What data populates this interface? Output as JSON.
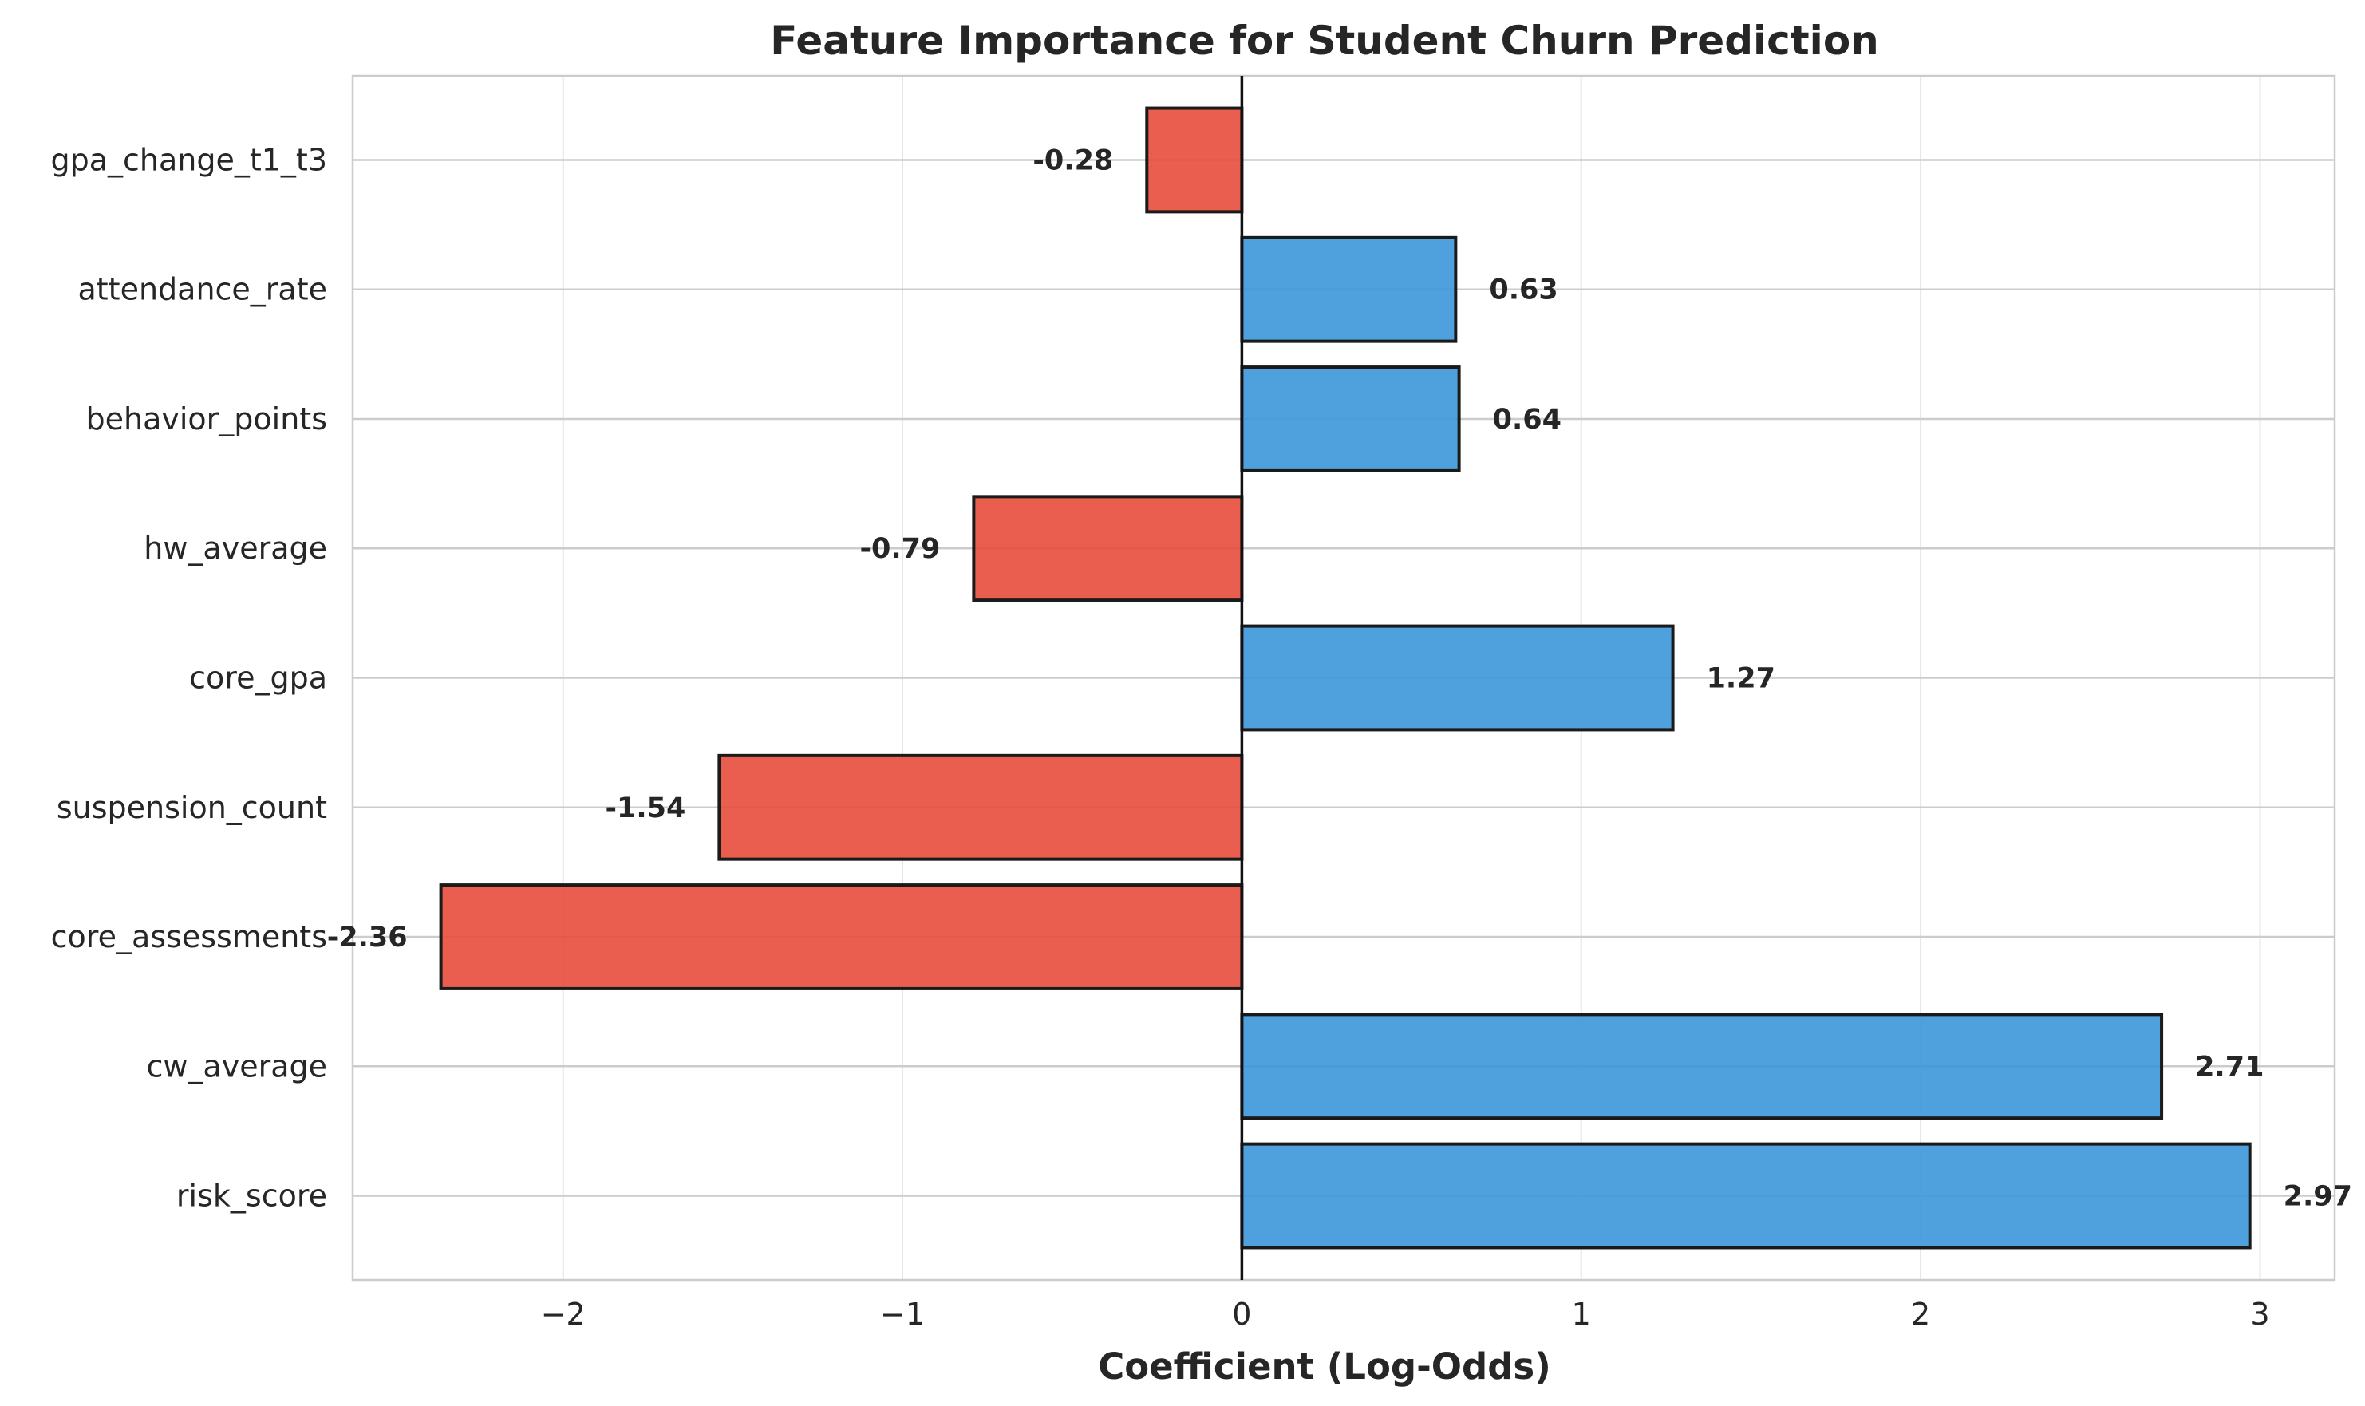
{
  "chart_data": {
    "type": "bar",
    "orientation": "horizontal",
    "title": "Feature Importance for Student Churn Prediction",
    "xlabel": "Coefficient (Log-Odds)",
    "ylabel": "",
    "xlim": [
      -2.62,
      3.22
    ],
    "xticks": [
      -2,
      -1,
      0,
      1,
      2,
      3
    ],
    "xtick_labels": [
      "−2",
      "−1",
      "0",
      "1",
      "2",
      "3"
    ],
    "grid": true,
    "zero_line": true,
    "categories": [
      "gpa_change_t1_t3",
      "attendance_rate",
      "behavior_points",
      "hw_average",
      "core_gpa",
      "suspension_count",
      "core_assessments",
      "cw_average",
      "risk_score"
    ],
    "values": [
      -0.28,
      0.63,
      0.64,
      -0.79,
      1.27,
      -1.54,
      -2.36,
      2.71,
      2.97
    ],
    "value_labels": [
      "-0.28",
      "0.63",
      "0.64",
      "-0.79",
      "1.27",
      "-1.54",
      "-2.36",
      "2.71",
      "2.97"
    ],
    "colors": {
      "positive": "#3b97d9",
      "negative": "#e74c3c",
      "edge": "#1a1a1a"
    }
  }
}
